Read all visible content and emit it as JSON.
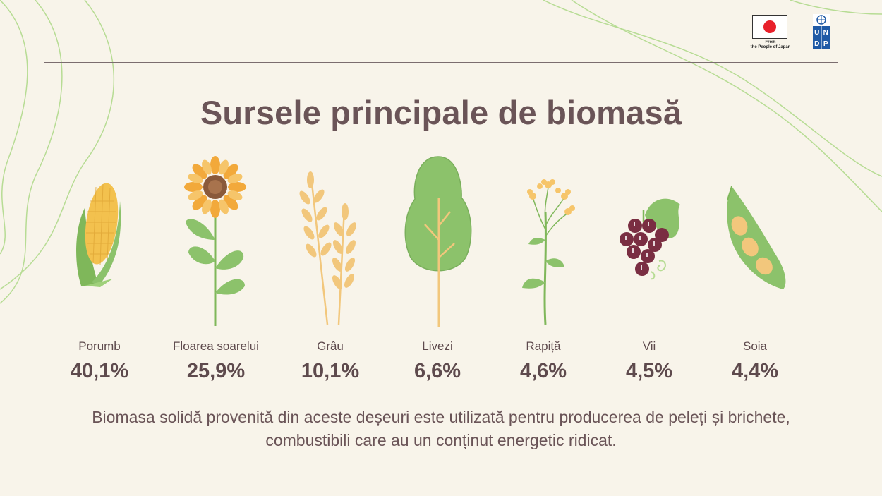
{
  "title": "Sursele principale de biomasă",
  "logos": {
    "japan_caption_line1": "From",
    "japan_caption_line2": "the People of Japan",
    "undp_letters": [
      "U",
      "N",
      "D",
      "P"
    ]
  },
  "items": [
    {
      "label": "Porumb",
      "value": "40,1%",
      "icon": "corn-icon"
    },
    {
      "label": "Floarea soarelui",
      "value": "25,9%",
      "icon": "sunflower-icon"
    },
    {
      "label": "Grâu",
      "value": "10,1%",
      "icon": "wheat-icon"
    },
    {
      "label": "Livezi",
      "value": "6,6%",
      "icon": "tree-icon"
    },
    {
      "label": "Rapiță",
      "value": "4,6%",
      "icon": "rapeseed-icon"
    },
    {
      "label": "Vii",
      "value": "4,5%",
      "icon": "grapes-icon"
    },
    {
      "label": "Soia",
      "value": "4,4%",
      "icon": "soybean-icon"
    }
  ],
  "footer": "Biomasa solidă provenită din aceste deșeuri este utilizată pentru producerea de peleți și brichete, combustibili care au un conținut energetic ridicat.",
  "colors": {
    "background": "#f8f4ea",
    "text": "#6a5457",
    "leaf_green": "#8cc26b",
    "grain": "#f2c77c",
    "grape": "#7a2e42",
    "line_green": "#b7dc94"
  }
}
